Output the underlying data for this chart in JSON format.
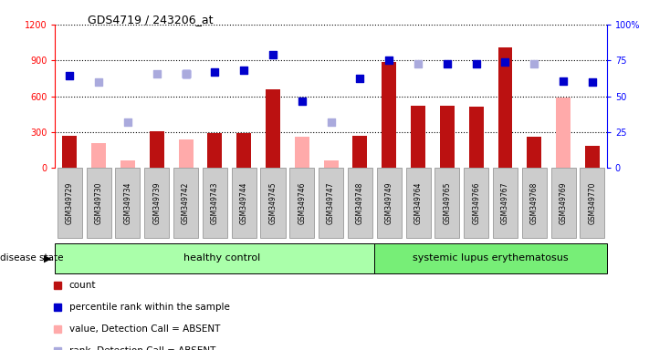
{
  "title": "GDS4719 / 243206_at",
  "samples": [
    "GSM349729",
    "GSM349730",
    "GSM349734",
    "GSM349739",
    "GSM349742",
    "GSM349743",
    "GSM349744",
    "GSM349745",
    "GSM349746",
    "GSM349747",
    "GSM349748",
    "GSM349749",
    "GSM349764",
    "GSM349765",
    "GSM349766",
    "GSM349767",
    "GSM349768",
    "GSM349769",
    "GSM349770"
  ],
  "count_values": [
    270,
    null,
    null,
    310,
    null,
    295,
    295,
    660,
    null,
    null,
    270,
    890,
    520,
    520,
    510,
    1010,
    260,
    null,
    185
  ],
  "count_absent_values": [
    null,
    210,
    60,
    null,
    235,
    null,
    null,
    null,
    260,
    65,
    null,
    null,
    null,
    null,
    null,
    null,
    null,
    590,
    null
  ],
  "rank_values": [
    770,
    null,
    null,
    null,
    790,
    800,
    820,
    950,
    560,
    null,
    750,
    900,
    null,
    875,
    875,
    890,
    null,
    730,
    720
  ],
  "rank_absent_values": [
    null,
    720,
    380,
    790,
    790,
    null,
    null,
    null,
    null,
    380,
    null,
    null,
    875,
    null,
    null,
    null,
    875,
    null,
    null
  ],
  "healthy_count": 11,
  "lupus_count": 8,
  "left_ylim": [
    0,
    1200
  ],
  "right_ylim": [
    0,
    100
  ],
  "left_yticks": [
    0,
    300,
    600,
    900,
    1200
  ],
  "right_yticks": [
    0,
    25,
    50,
    75,
    100
  ],
  "bar_color_present": "#bb1111",
  "bar_color_absent": "#ffaaaa",
  "dot_color_present": "#0000cc",
  "dot_color_absent": "#aaaadd",
  "healthy_bg": "#aaffaa",
  "lupus_bg": "#77ee77",
  "tick_label_bg": "#cccccc",
  "right_tick_labels": [
    "0",
    "25",
    "50",
    "75",
    "100%"
  ]
}
